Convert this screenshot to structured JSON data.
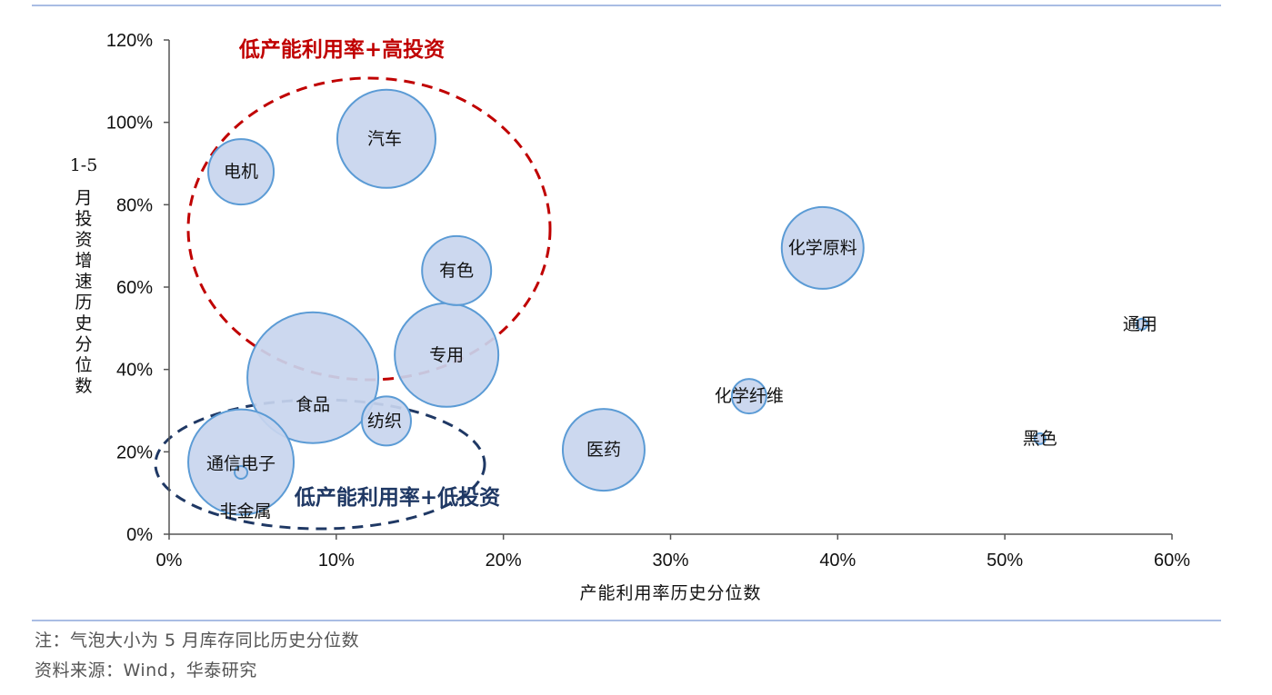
{
  "chart_data": {
    "type": "bubble",
    "xlabel": "产能利用率历史分位数",
    "ylabel": "1-5月投资增速历史分位数",
    "xlim": [
      0,
      0.6
    ],
    "ylim": [
      0,
      1.2
    ],
    "x_ticks": [
      "0%",
      "10%",
      "20%",
      "30%",
      "40%",
      "50%",
      "60%"
    ],
    "y_ticks": [
      "0%",
      "20%",
      "40%",
      "60%",
      "80%",
      "100%",
      "120%"
    ],
    "size_note": "气泡大小为5月库存同比历史分位数",
    "bubble_color": "#c8d5ee",
    "bubble_edge": "#5b9bd5",
    "points": [
      {
        "label": "电机",
        "x": 0.043,
        "y": 0.88,
        "size": 0.36
      },
      {
        "label": "汽车",
        "x": 0.13,
        "y": 0.96,
        "size": 0.54
      },
      {
        "label": "有色",
        "x": 0.172,
        "y": 0.64,
        "size": 0.38
      },
      {
        "label": "专用",
        "x": 0.166,
        "y": 0.435,
        "size": 0.57
      },
      {
        "label": "食品",
        "x": 0.086,
        "y": 0.38,
        "size": 0.72
      },
      {
        "label": "纺织",
        "x": 0.13,
        "y": 0.275,
        "size": 0.27
      },
      {
        "label": "通信电子",
        "x": 0.043,
        "y": 0.175,
        "size": 0.58
      },
      {
        "label": "非金属",
        "x": 0.043,
        "y": 0.15,
        "size": 0.07
      },
      {
        "label": "医药",
        "x": 0.26,
        "y": 0.205,
        "size": 0.45
      },
      {
        "label": "化学原料",
        "x": 0.391,
        "y": 0.695,
        "size": 0.45
      },
      {
        "label": "化学纤维",
        "x": 0.347,
        "y": 0.335,
        "size": 0.19
      },
      {
        "label": "通用",
        "x": 0.582,
        "y": 0.51,
        "size": 0.06
      },
      {
        "label": "黑色",
        "x": 0.521,
        "y": 0.232,
        "size": 0.06
      }
    ],
    "annotations": [
      {
        "text": "低产能利用率+高投资",
        "color": "#c00000"
      },
      {
        "text": "低产能利用率+低投资",
        "color": "#1f3864"
      }
    ],
    "grid": false,
    "legend": "none"
  },
  "footer": {
    "note": "注：气泡大小为 5 月库存同比历史分位数",
    "source": "资料来源：Wind，华泰研究"
  }
}
